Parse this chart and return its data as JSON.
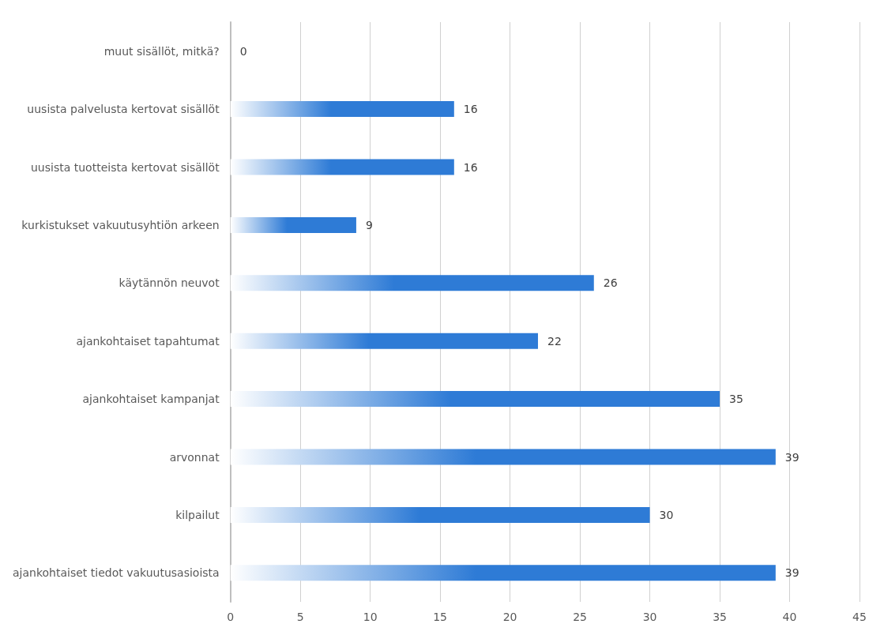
{
  "chart_data": {
    "type": "bar",
    "orientation": "horizontal",
    "categories": [
      "muut sisällöt, mitkä?",
      "uusista palvelusta kertovat sisällöt",
      "uusista tuotteista kertovat sisällöt",
      "kurkistukset vakuutusyhtiön arkeen",
      "käytännön neuvot",
      "ajankohtaiset tapahtumat",
      "ajankohtaiset kampanjat",
      "arvonnat",
      "kilpailut",
      "ajankohtaiset tiedot vakuutusasioista"
    ],
    "values": [
      0,
      16,
      16,
      9,
      26,
      22,
      35,
      39,
      30,
      39
    ],
    "color": "#2e7bd6",
    "xlim": [
      0,
      45
    ],
    "xticks": [
      0,
      5,
      10,
      15,
      20,
      25,
      30,
      35,
      40,
      45
    ],
    "grid": "x",
    "data_labels": true
  }
}
